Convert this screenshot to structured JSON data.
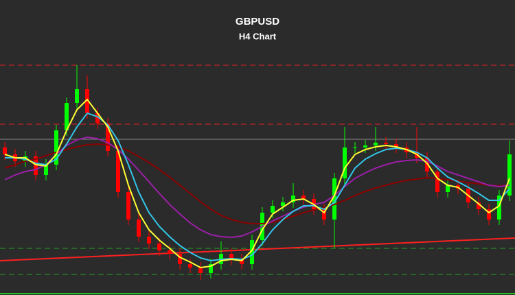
{
  "chart_data": {
    "type": "candlestick",
    "title": "GBPUSD",
    "subtitle": "H4 Chart",
    "ylim": [
      0,
      430
    ],
    "up_color": "#00ff00",
    "down_color": "#ff0000",
    "open": [
      215,
      205,
      195,
      202,
      175,
      190,
      240,
      280,
      300,
      265,
      250,
      210,
      150,
      110,
      85,
      75,
      65,
      60,
      45,
      40,
      32,
      45,
      60,
      52,
      45,
      80,
      120,
      130,
      135,
      145,
      140,
      125,
      110,
      170,
      215,
      215,
      218,
      222,
      220,
      215,
      208,
      200,
      180,
      150,
      160,
      155,
      135,
      125,
      110,
      145
    ],
    "high": [
      223,
      213,
      210,
      210,
      198,
      248,
      288,
      335,
      320,
      273,
      258,
      218,
      158,
      118,
      93,
      83,
      73,
      68,
      53,
      48,
      53,
      78,
      68,
      60,
      88,
      128,
      138,
      143,
      163,
      153,
      148,
      133,
      178,
      245,
      223,
      226,
      245,
      230,
      228,
      223,
      245,
      208,
      188,
      168,
      168,
      163,
      143,
      133,
      153,
      225
    ],
    "low": [
      197,
      187,
      187,
      167,
      167,
      182,
      232,
      272,
      257,
      242,
      202,
      142,
      102,
      77,
      67,
      57,
      52,
      37,
      32,
      22,
      24,
      37,
      44,
      37,
      37,
      72,
      112,
      122,
      127,
      132,
      117,
      102,
      68,
      162,
      207,
      207,
      210,
      212,
      207,
      200,
      192,
      172,
      142,
      142,
      147,
      127,
      117,
      102,
      102,
      137
    ],
    "close": [
      205,
      195,
      202,
      175,
      190,
      240,
      280,
      300,
      265,
      250,
      210,
      150,
      110,
      85,
      75,
      65,
      60,
      45,
      40,
      32,
      45,
      60,
      52,
      45,
      80,
      120,
      130,
      135,
      145,
      140,
      125,
      110,
      170,
      215,
      215,
      218,
      222,
      220,
      215,
      208,
      200,
      180,
      150,
      160,
      155,
      135,
      125,
      110,
      145,
      205
    ],
    "series": [
      {
        "color": "#8b0000",
        "values": [
          185,
          190,
          195,
          198,
          203,
          208,
          212,
          216,
          219,
          220,
          219,
          216,
          210,
          202,
          193,
          183,
          172,
          160,
          148,
          136,
          125,
          116,
          110,
          106,
          104,
          104,
          106,
          110,
          115,
          120,
          124,
          127,
          132,
          138,
          145,
          151,
          156,
          160,
          164,
          167,
          169,
          171,
          170,
          168,
          166,
          164,
          162,
          160,
          159,
          160
        ]
      },
      {
        "color": "#9b1fa8",
        "values": [
          168,
          175,
          180,
          183,
          190,
          205,
          218,
          226,
          230,
          228,
          222,
          212,
          198,
          182,
          165,
          148,
          132,
          118,
          105,
          95,
          88,
          85,
          84,
          86,
          92,
          100,
          108,
          115,
          122,
          128,
          132,
          135,
          145,
          158,
          170,
          178,
          185,
          190,
          194,
          196,
          197,
          195,
          188,
          180,
          175,
          170,
          165,
          160,
          158,
          160
        ]
      },
      {
        "color": "#33c6e8",
        "values": [
          200,
          200,
          198,
          192,
          190,
          198,
          220,
          245,
          265,
          260,
          248,
          225,
          190,
          150,
          120,
          100,
          85,
          72,
          62,
          54,
          50,
          52,
          53,
          52,
          58,
          75,
          95,
          110,
          122,
          130,
          130,
          125,
          135,
          160,
          185,
          198,
          206,
          212,
          214,
          212,
          208,
          200,
          185,
          172,
          165,
          157,
          148,
          138,
          138,
          155
        ]
      },
      {
        "color": "#ffff33",
        "values": [
          205,
          200,
          200,
          190,
          188,
          205,
          240,
          270,
          285,
          265,
          245,
          210,
          160,
          120,
          95,
          80,
          68,
          55,
          48,
          40,
          42,
          50,
          52,
          50,
          65,
          95,
          118,
          128,
          138,
          140,
          132,
          120,
          145,
          185,
          205,
          212,
          216,
          218,
          216,
          212,
          205,
          192,
          170,
          160,
          157,
          145,
          133,
          120,
          130,
          170
        ]
      }
    ],
    "levels": [
      {
        "value": 335,
        "color": "#e02020",
        "style": "dashed"
      },
      {
        "value": 249,
        "color": "#e02020",
        "style": "dashed"
      },
      {
        "value": 227,
        "color": "#888888",
        "style": "solid"
      },
      {
        "value": 68,
        "color": "#20a020",
        "style": "dashed"
      },
      {
        "value": 30,
        "color": "#20a020",
        "style": "dashed"
      }
    ],
    "trendline": {
      "values": [
        50,
        83
      ],
      "color": "#ff2020"
    }
  }
}
